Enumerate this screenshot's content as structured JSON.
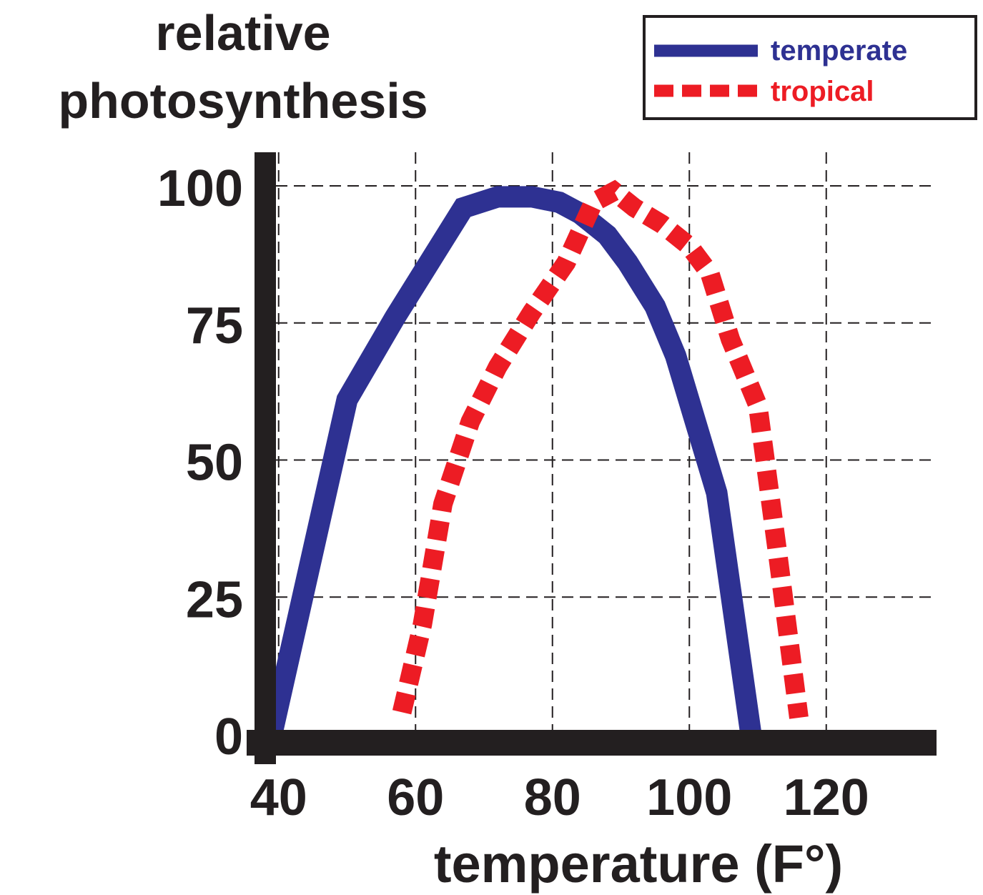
{
  "chart_data": {
    "type": "line",
    "ylabel_lines": [
      "relative",
      "photosynthesis"
    ],
    "xlabel": "temperature  (F°)",
    "x_ticks": [
      "40",
      "60",
      "80",
      "100",
      "120"
    ],
    "y_ticks": [
      "0",
      "25",
      "50",
      "75",
      "100"
    ],
    "xlim": [
      30,
      126
    ],
    "ylim": [
      0,
      100
    ],
    "grid": true,
    "legend_position": "top-right",
    "series": [
      {
        "name": "temperate",
        "color": "#2e3192",
        "style": "solid",
        "x": [
          39,
          50,
          57,
          67,
          72,
          77,
          81,
          84,
          88,
          91,
          95,
          98,
          104,
          109
        ],
        "y": [
          0,
          61,
          76,
          96,
          98,
          98,
          97,
          95,
          91,
          86,
          78,
          69,
          44,
          0
        ]
      },
      {
        "name": "tropical",
        "color": "#ed1c24",
        "style": "dashed",
        "x": [
          58,
          61,
          64,
          68,
          72,
          77,
          82,
          86,
          89,
          92,
          96,
          100,
          103,
          106,
          110,
          113,
          116
        ],
        "y": [
          4,
          20,
          42,
          57,
          67,
          77,
          86,
          97,
          99,
          96,
          93,
          89,
          84,
          72,
          60,
          32,
          3
        ]
      }
    ]
  }
}
